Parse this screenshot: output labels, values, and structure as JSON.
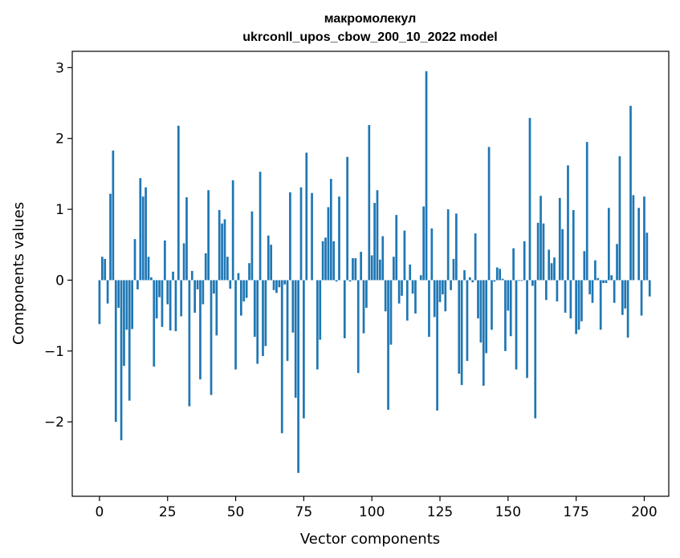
{
  "chart_data": {
    "type": "bar",
    "title_line1": "макромолекул",
    "title_line2": "ukrconll_upos_cbow_200_10_2022 model",
    "xlabel": "Vector components",
    "ylabel": "Components values",
    "xlim": [
      -10,
      209
    ],
    "ylim": [
      -3.05,
      3.23
    ],
    "x_ticks": [
      0,
      25,
      50,
      75,
      100,
      125,
      150,
      175,
      200
    ],
    "x_tick_labels": [
      "0",
      "25",
      "50",
      "75",
      "100",
      "125",
      "150",
      "175",
      "200"
    ],
    "y_ticks": [
      3,
      2,
      1,
      0,
      -1,
      -2
    ],
    "y_tick_labels": [
      "3",
      "2",
      "1",
      "0",
      "−1",
      "−2"
    ],
    "bar_color": "#1f77b4",
    "grid": false,
    "values": [
      -0.62,
      0.33,
      0.3,
      -0.33,
      1.22,
      1.83,
      -2.0,
      -0.39,
      -2.26,
      -1.21,
      -0.7,
      -1.7,
      -0.69,
      0.58,
      -0.13,
      1.44,
      1.18,
      1.31,
      0.33,
      0.04,
      -1.22,
      -0.54,
      -0.24,
      -0.66,
      0.56,
      -0.34,
      -0.71,
      0.12,
      -0.72,
      2.18,
      -0.51,
      0.52,
      1.17,
      -1.78,
      0.13,
      -0.46,
      -0.13,
      -1.4,
      -0.34,
      0.38,
      1.27,
      -1.62,
      -0.19,
      -0.78,
      0.99,
      0.8,
      0.86,
      0.33,
      -0.12,
      1.41,
      -1.26,
      0.1,
      -0.5,
      -0.3,
      -0.25,
      0.24,
      0.97,
      -0.8,
      -1.18,
      1.53,
      -1.07,
      -0.93,
      0.63,
      0.5,
      -0.14,
      -0.18,
      -0.1,
      -2.16,
      -0.06,
      -1.14,
      1.24,
      -0.74,
      -1.66,
      -2.72,
      1.31,
      -1.95,
      1.8,
      0.0,
      1.23,
      0.0,
      -1.26,
      -0.84,
      0.55,
      0.6,
      1.03,
      1.43,
      0.55,
      -0.02,
      1.18,
      0.0,
      -0.82,
      1.74,
      -0.02,
      0.31,
      0.31,
      -1.31,
      0.4,
      -0.75,
      -0.39,
      2.19,
      0.35,
      1.09,
      1.27,
      0.29,
      0.62,
      -0.44,
      -1.83,
      -0.91,
      0.33,
      0.92,
      -0.33,
      -0.22,
      0.7,
      -0.57,
      0.22,
      -0.19,
      -0.47,
      0.0,
      0.07,
      1.04,
      2.95,
      -0.8,
      0.73,
      -0.52,
      -1.84,
      -0.31,
      -0.2,
      -0.44,
      1.0,
      -0.14,
      0.3,
      0.94,
      -1.32,
      -1.48,
      0.14,
      -1.14,
      0.04,
      -0.03,
      0.66,
      -0.54,
      -0.88,
      -1.49,
      -1.03,
      1.88,
      -0.7,
      -0.02,
      0.18,
      0.16,
      0.02,
      -1.0,
      -0.43,
      -0.79,
      0.45,
      -1.26,
      -0.01,
      -0.01,
      0.55,
      -1.38,
      2.29,
      -0.08,
      -1.95,
      0.81,
      1.19,
      0.8,
      -0.28,
      0.43,
      0.24,
      0.32,
      -0.3,
      1.16,
      0.72,
      -0.46,
      1.62,
      -0.54,
      0.99,
      -0.76,
      -0.7,
      -0.58,
      0.41,
      1.95,
      -0.2,
      -0.32,
      0.28,
      0.03,
      -0.7,
      -0.04,
      -0.04,
      1.02,
      0.07,
      -0.32,
      0.51,
      1.75,
      -0.49,
      -0.4,
      -0.81,
      2.46,
      1.2,
      0.0,
      1.02,
      -0.5,
      1.18,
      0.67,
      -0.23
    ]
  }
}
